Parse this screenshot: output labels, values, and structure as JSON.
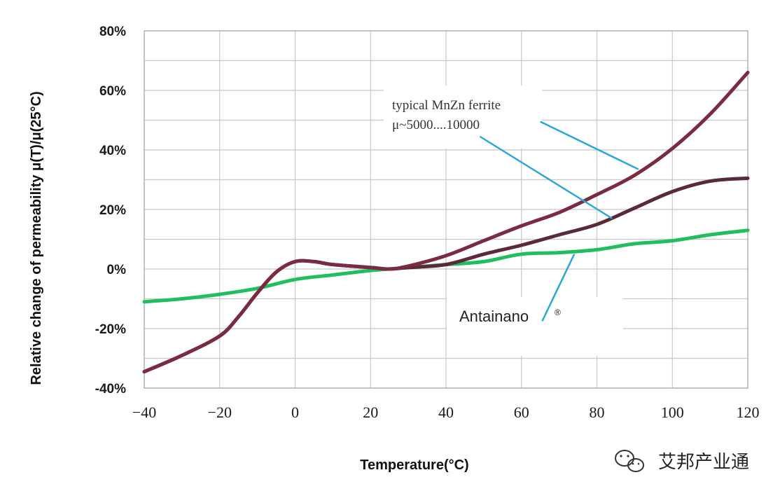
{
  "chart_data": {
    "type": "line",
    "xlabel": "Temperature(°C)",
    "ylabel": "Relative change of permeability μ(T)/μ(25°C)",
    "xlim": [
      -40,
      120
    ],
    "ylim": [
      -40,
      80
    ],
    "x_ticks": [
      "-40",
      "-20",
      "0",
      "20",
      "40",
      "60",
      "80",
      "100",
      "120"
    ],
    "y_ticks": [
      "80%",
      "60%",
      "40%",
      "20%",
      "0%",
      "-20%",
      "-40%"
    ],
    "grid": true,
    "series": [
      {
        "color": "#7a2b3f",
        "points": [
          [
            -40,
            -34.5
          ],
          [
            -30,
            -29
          ],
          [
            -20,
            -22.5
          ],
          [
            -15,
            -16
          ],
          [
            -10,
            -8
          ],
          [
            -5,
            -1
          ],
          [
            0,
            2.5
          ],
          [
            5,
            2.5
          ],
          [
            10,
            1.5
          ],
          [
            20,
            0.5
          ],
          [
            25,
            0
          ],
          [
            30,
            1
          ],
          [
            40,
            4.5
          ],
          [
            50,
            9.5
          ],
          [
            60,
            14.5
          ],
          [
            70,
            19
          ],
          [
            80,
            25
          ],
          [
            90,
            31.5
          ],
          [
            100,
            40.5
          ],
          [
            110,
            52
          ],
          [
            120,
            66
          ]
        ]
      },
      {
        "color": "#5a2a36",
        "points": [
          [
            -40,
            -34.5
          ],
          [
            -30,
            -29
          ],
          [
            -20,
            -22.5
          ],
          [
            -15,
            -16
          ],
          [
            -10,
            -8
          ],
          [
            -5,
            -1
          ],
          [
            0,
            2.5
          ],
          [
            5,
            2.5
          ],
          [
            10,
            1.5
          ],
          [
            20,
            0.5
          ],
          [
            25,
            0
          ],
          [
            30,
            0.5
          ],
          [
            40,
            1.5
          ],
          [
            50,
            5
          ],
          [
            60,
            8
          ],
          [
            70,
            11.5
          ],
          [
            80,
            15
          ],
          [
            90,
            20.5
          ],
          [
            100,
            26
          ],
          [
            110,
            29.5
          ],
          [
            120,
            30.5
          ]
        ]
      },
      {
        "name": "Antainano",
        "color": "#1fbf60",
        "points": [
          [
            -40,
            -11
          ],
          [
            -30,
            -10
          ],
          [
            -20,
            -8.5
          ],
          [
            -10,
            -6.5
          ],
          [
            0,
            -3.5
          ],
          [
            10,
            -2
          ],
          [
            20,
            -0.5
          ],
          [
            30,
            0.5
          ],
          [
            40,
            1.5
          ],
          [
            50,
            2.5
          ],
          [
            60,
            5
          ],
          [
            70,
            5.5
          ],
          [
            80,
            6.5
          ],
          [
            90,
            8.5
          ],
          [
            100,
            9.5
          ],
          [
            110,
            11.5
          ],
          [
            120,
            13
          ]
        ]
      }
    ],
    "annotations": {
      "mnzn_line1": "typical MnZn ferrite",
      "mnzn_line2": "μ~5000....10000",
      "antainano_label": "Antainano",
      "antainano_sup": "®",
      "leader_color": "#2aa8d8"
    }
  },
  "watermark": {
    "text": "艾邦产业通",
    "icon": "wechat-logo-icon"
  }
}
